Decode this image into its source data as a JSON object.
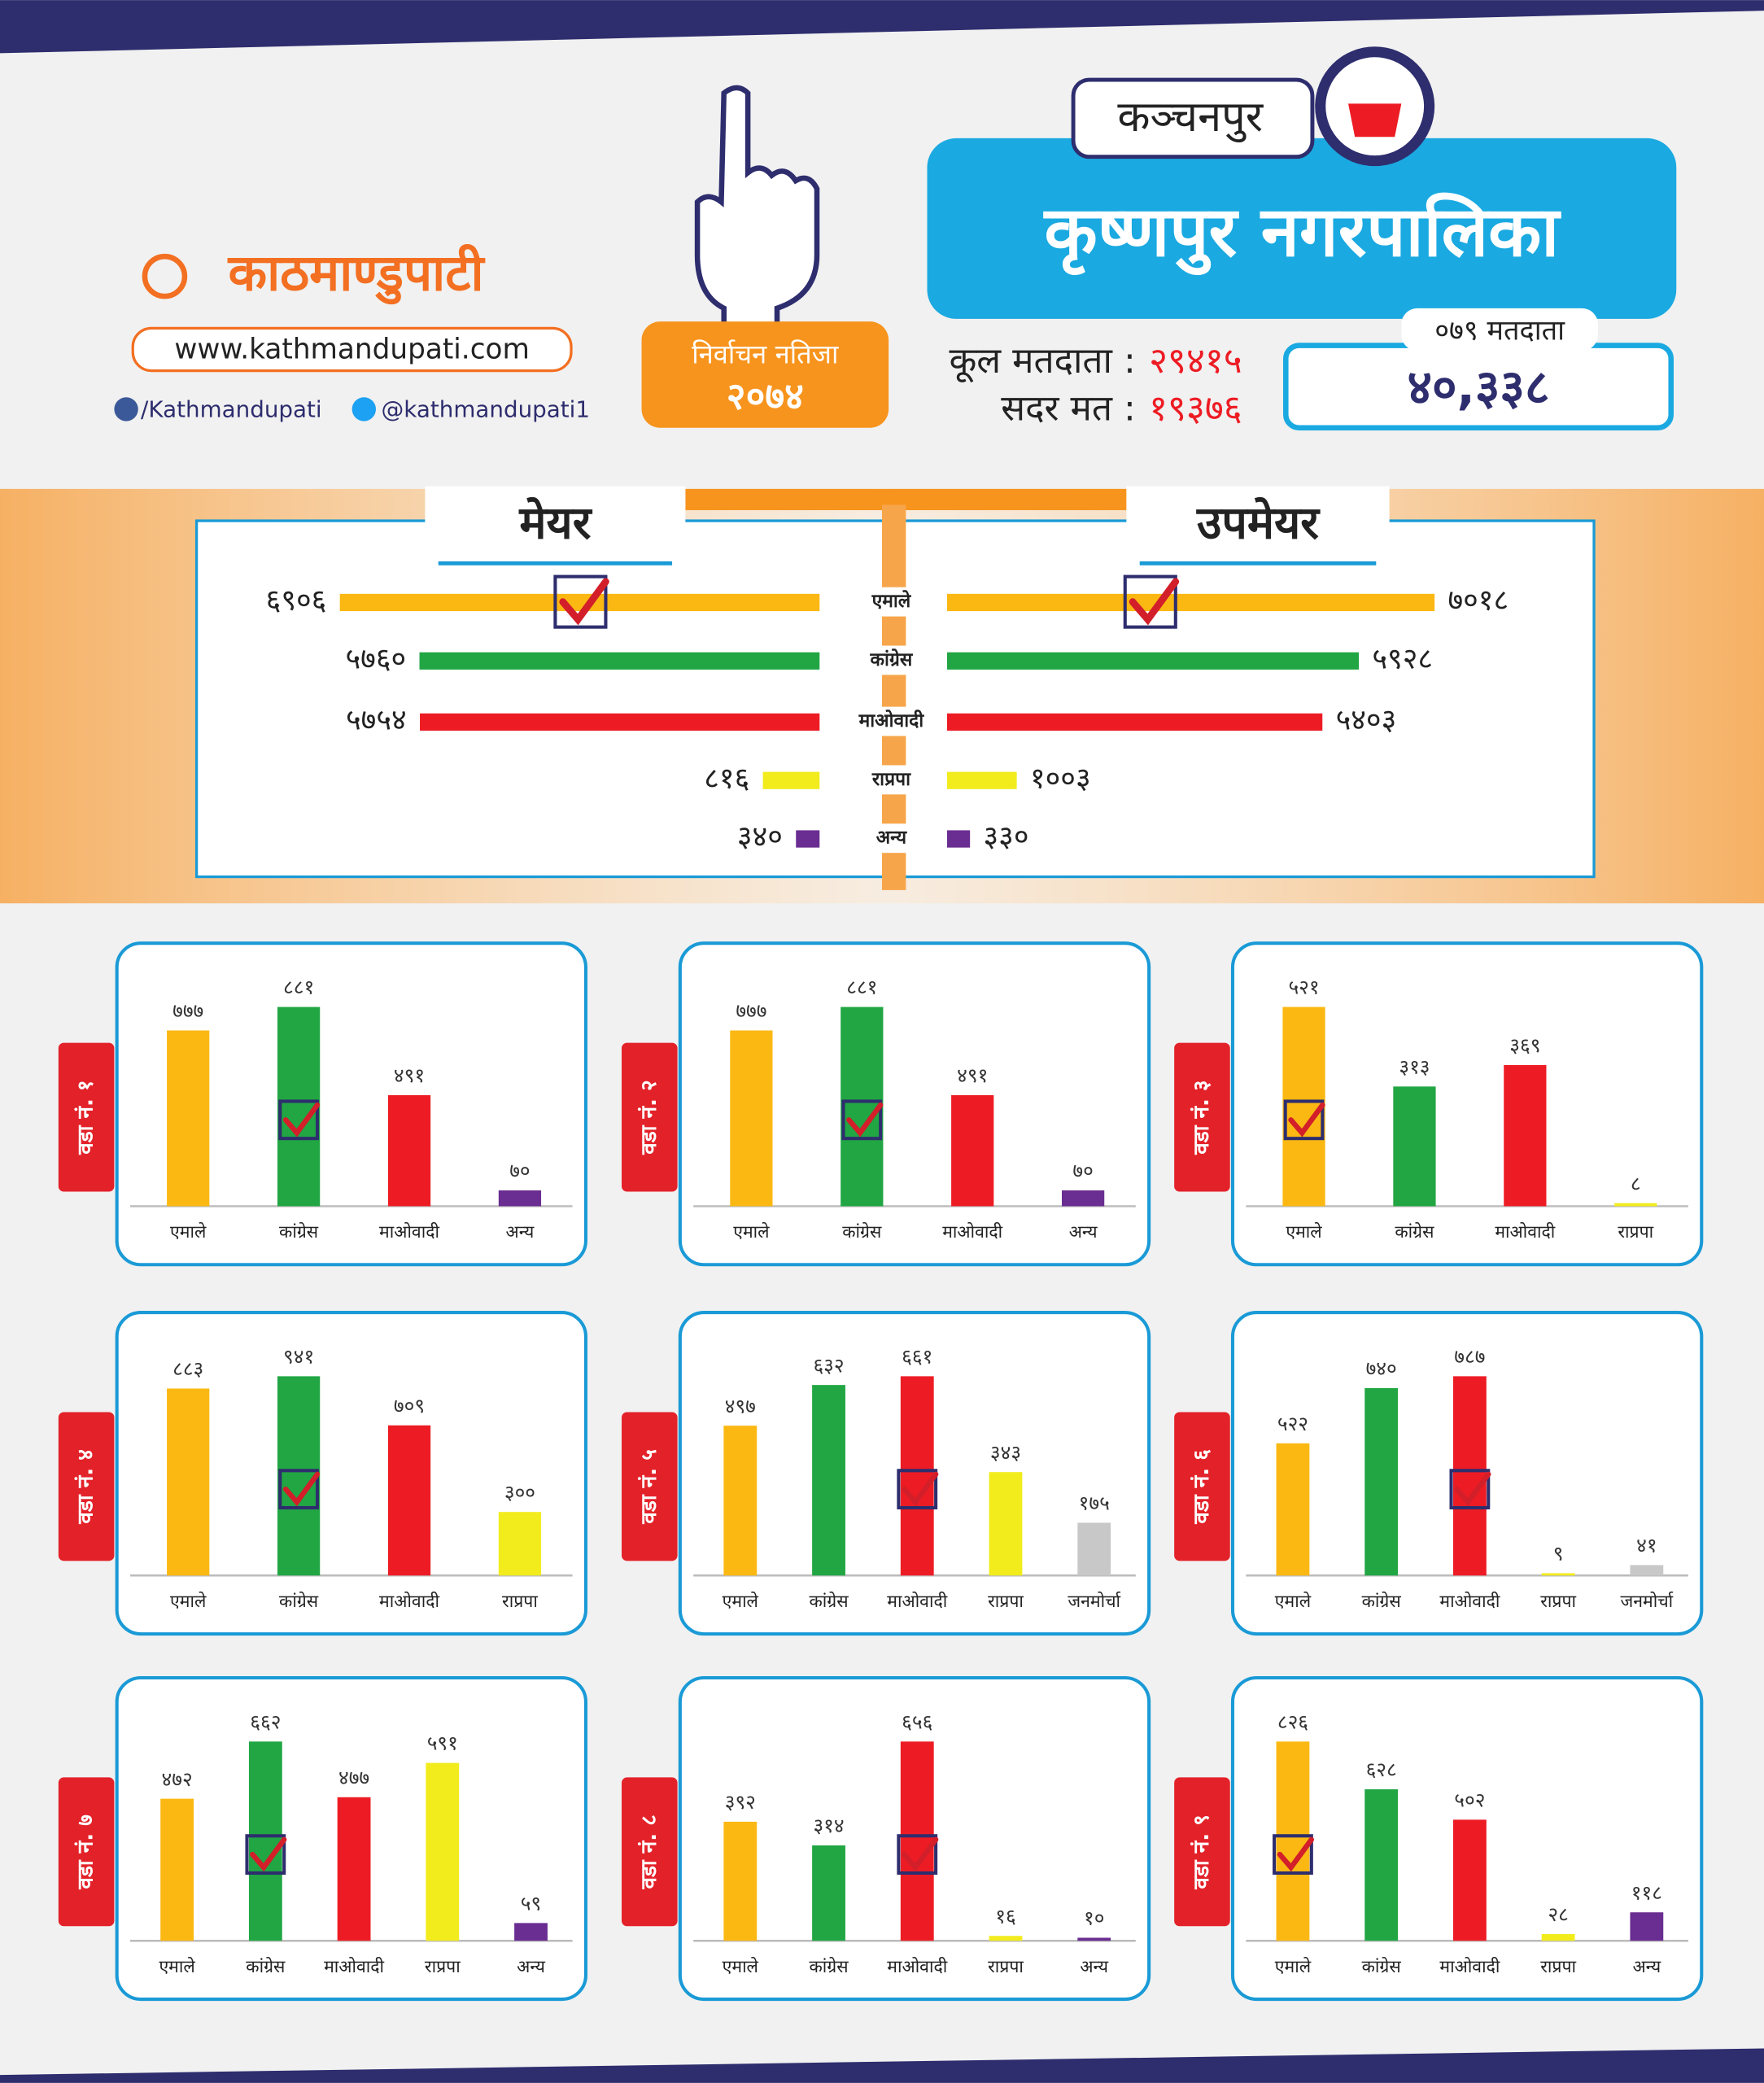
{
  "header": {
    "logo": "काठमाण्डुपाटी",
    "url": "www.kathmandupati.com",
    "facebook": "/Kathmandupati",
    "twitter": "@kathmandupati1",
    "badge_title": "निर्वाचन नतिजा",
    "badge_year": "२०७४",
    "district": "कञ्चनपुर",
    "municipality": "कृष्णपुर नगरपालिका",
    "total_voters_label": "कूल मतदाता :",
    "total_voters": "२९४१५",
    "valid_votes_label": "सदर मत :",
    "valid_votes": "१९३७६",
    "voters_079_label": "०७९ मतदाता",
    "voters_079": "४०,३३८"
  },
  "chart_data": [
    {
      "type": "bar",
      "orientation": "horizontal",
      "direction": "left",
      "title": "मेयर",
      "categories": [
        "एमाले",
        "कांग्रेस",
        "माओवादी",
        "राप्रपा",
        "अन्य"
      ],
      "values": [
        6906,
        5760,
        5754,
        816,
        340
      ],
      "value_labels": [
        "६९०६",
        "५७६०",
        "५७५४",
        "८१६",
        "३४०"
      ],
      "colors": [
        "#fbb812",
        "#21a643",
        "#ed1c24",
        "#f2ec1d",
        "#6a2d91"
      ],
      "winner": "एमाले"
    },
    {
      "type": "bar",
      "orientation": "horizontal",
      "direction": "right",
      "title": "उपमेयर",
      "categories": [
        "एमाले",
        "कांग्रेस",
        "माओवादी",
        "राप्रपा",
        "अन्य"
      ],
      "values": [
        7018,
        5928,
        5403,
        1003,
        330
      ],
      "value_labels": [
        "७०१८",
        "५९२८",
        "५४०३",
        "१००३",
        "३३०"
      ],
      "colors": [
        "#fbb812",
        "#21a643",
        "#ed1c24",
        "#f2ec1d",
        "#6a2d91"
      ],
      "winner": "एमाले"
    },
    {
      "type": "bar",
      "title": "वडा नं. १",
      "categories": [
        "एमाले",
        "कांग्रेस",
        "माओवादी",
        "अन्य"
      ],
      "values": [
        777,
        881,
        491,
        70
      ],
      "value_labels": [
        "७७७",
        "८८१",
        "४९१",
        "७०"
      ],
      "colors": [
        "#fbb812",
        "#21a643",
        "#ed1c24",
        "#6a2d91"
      ],
      "winner": "कांग्रेस"
    },
    {
      "type": "bar",
      "title": "वडा नं. २",
      "categories": [
        "एमाले",
        "कांग्रेस",
        "माओवादी",
        "अन्य"
      ],
      "values": [
        777,
        881,
        491,
        70
      ],
      "value_labels": [
        "७७७",
        "८८१",
        "४९१",
        "७०"
      ],
      "colors": [
        "#fbb812",
        "#21a643",
        "#ed1c24",
        "#6a2d91"
      ],
      "winner": "कांग्रेस"
    },
    {
      "type": "bar",
      "title": "वडा नं. ३",
      "categories": [
        "एमाले",
        "कांग्रेस",
        "माओवादी",
        "राप्रपा"
      ],
      "values": [
        521,
        313,
        369,
        8
      ],
      "value_labels": [
        "५२१",
        "३१३",
        "३६९",
        "८"
      ],
      "colors": [
        "#fbb812",
        "#21a643",
        "#ed1c24",
        "#f2ec1d"
      ],
      "winner": "एमाले"
    },
    {
      "type": "bar",
      "title": "वडा नं. ४",
      "categories": [
        "एमाले",
        "कांग्रेस",
        "माओवादी",
        "राप्रपा"
      ],
      "values": [
        883,
        941,
        709,
        300
      ],
      "value_labels": [
        "८८३",
        "९४१",
        "७०९",
        "३००"
      ],
      "colors": [
        "#fbb812",
        "#21a643",
        "#ed1c24",
        "#f2ec1d"
      ],
      "winner": "कांग्रेस"
    },
    {
      "type": "bar",
      "title": "वडा नं. ५",
      "categories": [
        "एमाले",
        "कांग्रेस",
        "माओवादी",
        "राप्रपा",
        "जनमोर्चा"
      ],
      "values": [
        497,
        632,
        661,
        343,
        175
      ],
      "value_labels": [
        "४९७",
        "६३२",
        "६६१",
        "३४३",
        "१७५"
      ],
      "colors": [
        "#fbb812",
        "#21a643",
        "#ed1c24",
        "#f2ec1d",
        "#c8c8c8"
      ],
      "winner": "माओवादी"
    },
    {
      "type": "bar",
      "title": "वडा नं. ६",
      "categories": [
        "एमाले",
        "कांग्रेस",
        "माओवादी",
        "राप्रपा",
        "जनमोर्चा"
      ],
      "values": [
        522,
        740,
        787,
        9,
        41
      ],
      "value_labels": [
        "५२२",
        "७४०",
        "७८७",
        "९",
        "४१"
      ],
      "colors": [
        "#fbb812",
        "#21a643",
        "#ed1c24",
        "#f2ec1d",
        "#c8c8c8"
      ],
      "winner": "माओवादी"
    },
    {
      "type": "bar",
      "title": "वडा नं. ७",
      "categories": [
        "एमाले",
        "कांग्रेस",
        "माओवादी",
        "राप्रपा",
        "अन्य"
      ],
      "values": [
        472,
        662,
        477,
        591,
        59
      ],
      "value_labels": [
        "४७२",
        "६६२",
        "४७७",
        "५९१",
        "५९"
      ],
      "colors": [
        "#fbb812",
        "#21a643",
        "#ed1c24",
        "#f2ec1d",
        "#6a2d91"
      ],
      "winner": "कांग्रेस"
    },
    {
      "type": "bar",
      "title": "वडा नं. ८",
      "categories": [
        "एमाले",
        "कांग्रेस",
        "माओवादी",
        "राप्रपा",
        "अन्य"
      ],
      "values": [
        392,
        314,
        656,
        16,
        10
      ],
      "value_labels": [
        "३९२",
        "३१४",
        "६५६",
        "१६",
        "१०"
      ],
      "colors": [
        "#fbb812",
        "#21a643",
        "#ed1c24",
        "#f2ec1d",
        "#6a2d91"
      ],
      "winner": "माओवादी"
    },
    {
      "type": "bar",
      "title": "वडा नं. ९",
      "categories": [
        "एमाले",
        "कांग्रेस",
        "माओवादी",
        "राप्रपा",
        "अन्य"
      ],
      "values": [
        826,
        628,
        502,
        28,
        118
      ],
      "value_labels": [
        "८२६",
        "६२८",
        "५०२",
        "२८",
        "११८"
      ],
      "colors": [
        "#fbb812",
        "#21a643",
        "#ed1c24",
        "#f2ec1d",
        "#6a2d91"
      ],
      "winner": "एमाले"
    }
  ]
}
